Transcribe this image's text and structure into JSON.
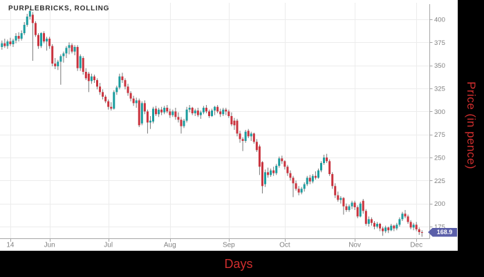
{
  "colors": {
    "up": "#1b9c9e",
    "down": "#c9333e",
    "wick": "#777777",
    "grid": "#ececec",
    "axis": "#a6a6a6",
    "tick_text": "#808080",
    "title_text": "#2f2f2f",
    "frame_bg": "#000000",
    "frame_text": "#cf2e2e",
    "price_tag_bg": "#5b5fa9",
    "price_tag_text": "#ffffff",
    "plot_bg": "#ffffff"
  },
  "chart_data": {
    "type": "candlestick",
    "title": "PURPLEBRICKS, ROLLING",
    "xlabel": "Days",
    "ylabel": "Price (in pence)",
    "last_price": 168.9,
    "last_price_label": "168.9",
    "ylim": [
      164,
      411
    ],
    "grid": true,
    "y_axis_side": "right",
    "y_ticks": [
      400,
      375,
      350,
      325,
      300,
      275,
      250,
      225,
      200,
      175
    ],
    "x_ticks": [
      {
        "label": "14",
        "i": 3
      },
      {
        "label": "Jun",
        "i": 17
      },
      {
        "label": "Jul",
        "i": 38
      },
      {
        "label": "Aug",
        "i": 60
      },
      {
        "label": "Sep",
        "i": 81
      },
      {
        "label": "Oct",
        "i": 101
      },
      {
        "label": "Nov",
        "i": 126
      },
      {
        "label": "Dec",
        "i": 148
      }
    ],
    "candles_format": [
      "open",
      "high",
      "low",
      "close"
    ],
    "candles": [
      [
        370,
        377,
        367,
        374
      ],
      [
        374,
        379,
        369,
        371
      ],
      [
        371,
        378,
        368,
        376
      ],
      [
        376,
        380,
        371,
        373
      ],
      [
        373,
        379,
        370,
        377
      ],
      [
        377,
        385,
        374,
        382
      ],
      [
        382,
        386,
        376,
        379
      ],
      [
        379,
        388,
        377,
        385
      ],
      [
        385,
        397,
        383,
        394
      ],
      [
        394,
        406,
        392,
        403
      ],
      [
        403,
        411,
        400,
        409
      ],
      [
        405,
        408,
        355,
        396
      ],
      [
        396,
        398,
        381,
        383
      ],
      [
        383,
        385,
        368,
        371
      ],
      [
        371,
        386,
        369,
        385
      ],
      [
        385,
        387,
        374,
        376
      ],
      [
        376,
        381,
        366,
        379
      ],
      [
        379,
        381,
        368,
        371
      ],
      [
        371,
        373,
        349,
        352
      ],
      [
        352,
        358,
        346,
        349
      ],
      [
        349,
        356,
        345,
        354
      ],
      [
        354,
        362,
        329,
        360
      ],
      [
        360,
        365,
        353,
        363
      ],
      [
        363,
        371,
        358,
        369
      ],
      [
        369,
        375,
        362,
        372
      ],
      [
        372,
        374,
        363,
        365
      ],
      [
        365,
        372,
        361,
        370
      ],
      [
        370,
        372,
        344,
        347
      ],
      [
        347,
        362,
        344,
        360
      ],
      [
        358,
        360,
        340,
        343
      ],
      [
        343,
        347,
        334,
        336
      ],
      [
        341,
        343,
        321,
        333
      ],
      [
        333,
        341,
        330,
        338
      ],
      [
        338,
        340,
        331,
        334
      ],
      [
        334,
        336,
        324,
        327
      ],
      [
        327,
        331,
        318,
        321
      ],
      [
        321,
        324,
        313,
        316
      ],
      [
        316,
        318,
        309,
        311
      ],
      [
        311,
        313,
        302,
        305
      ],
      [
        305,
        310,
        301,
        303
      ],
      [
        303,
        323,
        302,
        321
      ],
      [
        321,
        328,
        318,
        326
      ],
      [
        326,
        341,
        324,
        338
      ],
      [
        338,
        342,
        331,
        334
      ],
      [
        334,
        336,
        324,
        327
      ],
      [
        327,
        330,
        317,
        320
      ],
      [
        320,
        322,
        311,
        314
      ],
      [
        314,
        317,
        306,
        309
      ],
      [
        309,
        315,
        304,
        312
      ],
      [
        312,
        314,
        283,
        285
      ],
      [
        287,
        311,
        285,
        309
      ],
      [
        309,
        312,
        297,
        300
      ],
      [
        300,
        302,
        276,
        288
      ],
      [
        288,
        295,
        281,
        290
      ],
      [
        289,
        305,
        287,
        303
      ],
      [
        303,
        306,
        295,
        297
      ],
      [
        297,
        304,
        294,
        302
      ],
      [
        302,
        305,
        296,
        299
      ],
      [
        299,
        306,
        297,
        304
      ],
      [
        304,
        307,
        298,
        300
      ],
      [
        300,
        303,
        293,
        296
      ],
      [
        296,
        302,
        294,
        300
      ],
      [
        300,
        304,
        291,
        294
      ],
      [
        294,
        299,
        288,
        291
      ],
      [
        291,
        294,
        276,
        284
      ],
      [
        284,
        292,
        282,
        290
      ],
      [
        290,
        305,
        288,
        302
      ],
      [
        302,
        307,
        299,
        304
      ],
      [
        304,
        305,
        296,
        298
      ],
      [
        298,
        303,
        295,
        301
      ],
      [
        301,
        304,
        294,
        296
      ],
      [
        296,
        301,
        292,
        299
      ],
      [
        299,
        306,
        297,
        304
      ],
      [
        304,
        307,
        298,
        300
      ],
      [
        300,
        302,
        293,
        295
      ],
      [
        295,
        303,
        294,
        301
      ],
      [
        301,
        306,
        296,
        305
      ],
      [
        305,
        307,
        298,
        300
      ],
      [
        300,
        303,
        294,
        297
      ],
      [
        297,
        304,
        295,
        302
      ],
      [
        302,
        304,
        296,
        300
      ],
      [
        300,
        302,
        293,
        295
      ],
      [
        295,
        299,
        284,
        286
      ],
      [
        290,
        293,
        280,
        285
      ],
      [
        290,
        292,
        273,
        276
      ],
      [
        276,
        279,
        266,
        270
      ],
      [
        270,
        272,
        257,
        268
      ],
      [
        268,
        280,
        266,
        278
      ],
      [
        279,
        281,
        271,
        273
      ],
      [
        273,
        278,
        268,
        276
      ],
      [
        276,
        277,
        265,
        267
      ],
      [
        267,
        270,
        256,
        258
      ],
      [
        262,
        264,
        231,
        240
      ],
      [
        245,
        246,
        211,
        219
      ],
      [
        221,
        237,
        218,
        234
      ],
      [
        234,
        239,
        228,
        231
      ],
      [
        231,
        238,
        229,
        236
      ],
      [
        236,
        240,
        230,
        233
      ],
      [
        233,
        243,
        231,
        241
      ],
      [
        241,
        251,
        239,
        249
      ],
      [
        249,
        252,
        243,
        246
      ],
      [
        246,
        247,
        237,
        240
      ],
      [
        240,
        242,
        230,
        233
      ],
      [
        233,
        236,
        225,
        228
      ],
      [
        228,
        230,
        207,
        222
      ],
      [
        222,
        225,
        214,
        216
      ],
      [
        216,
        219,
        209,
        212
      ],
      [
        212,
        218,
        210,
        216
      ],
      [
        216,
        223,
        213,
        221
      ],
      [
        221,
        230,
        219,
        228
      ],
      [
        228,
        231,
        221,
        224
      ],
      [
        224,
        232,
        222,
        230
      ],
      [
        230,
        235,
        226,
        228
      ],
      [
        228,
        238,
        227,
        236
      ],
      [
        236,
        246,
        234,
        244
      ],
      [
        244,
        253,
        242,
        250
      ],
      [
        250,
        254,
        244,
        246
      ],
      [
        246,
        248,
        230,
        232
      ],
      [
        232,
        234,
        216,
        219
      ],
      [
        219,
        222,
        206,
        209
      ],
      [
        209,
        213,
        202,
        204
      ],
      [
        204,
        208,
        200,
        206
      ],
      [
        206,
        207,
        188,
        197
      ],
      [
        197,
        200,
        191,
        193
      ],
      [
        193,
        199,
        191,
        197
      ],
      [
        197,
        203,
        194,
        201
      ],
      [
        201,
        203,
        193,
        196
      ],
      [
        196,
        198,
        184,
        186
      ],
      [
        186,
        202,
        185,
        200
      ],
      [
        203,
        205,
        189,
        192
      ],
      [
        192,
        194,
        176,
        178
      ],
      [
        178,
        186,
        175,
        183
      ],
      [
        183,
        185,
        176,
        179
      ],
      [
        179,
        181,
        172,
        175
      ],
      [
        175,
        180,
        173,
        178
      ],
      [
        178,
        179,
        170,
        173
      ],
      [
        173,
        175,
        165,
        170
      ],
      [
        170,
        176,
        168,
        174
      ],
      [
        174,
        175,
        168,
        171
      ],
      [
        171,
        178,
        170,
        176
      ],
      [
        176,
        177,
        170,
        173
      ],
      [
        173,
        179,
        171,
        177
      ],
      [
        177,
        185,
        175,
        183
      ],
      [
        183,
        191,
        181,
        189
      ],
      [
        189,
        193,
        184,
        186
      ],
      [
        186,
        188,
        178,
        180
      ],
      [
        180,
        182,
        172,
        174
      ],
      [
        174,
        179,
        171,
        177
      ],
      [
        177,
        180,
        170,
        172
      ],
      [
        172,
        174,
        166,
        169
      ],
      [
        169,
        171,
        164,
        168.9
      ]
    ]
  }
}
